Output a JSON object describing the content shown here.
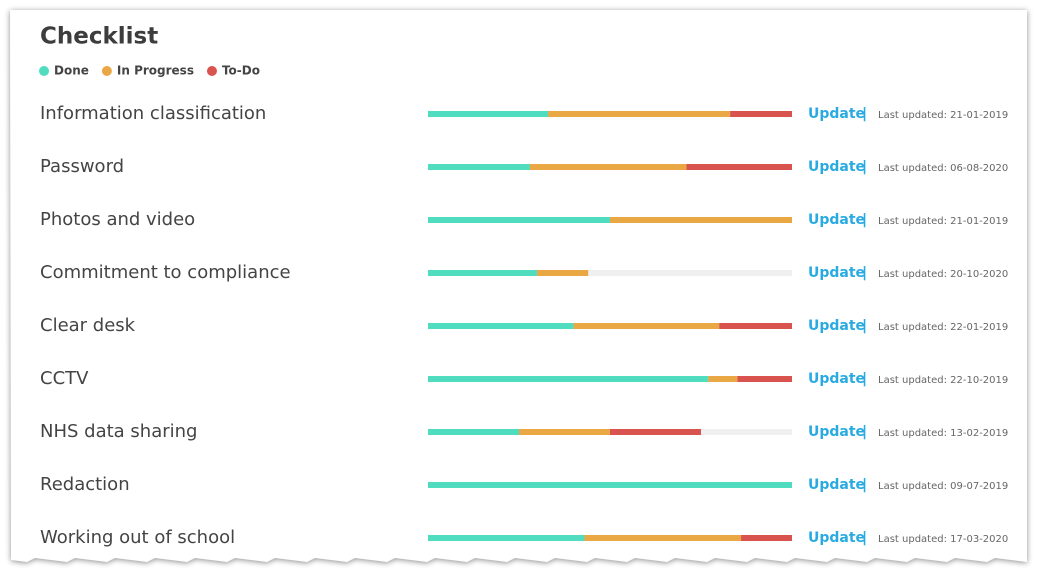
{
  "header": {
    "title": "Checklist"
  },
  "legend": [
    {
      "label": "Done",
      "color": "#4fdcbf"
    },
    {
      "label": "In Progress",
      "color": "#eaa844"
    },
    {
      "label": "To-Do",
      "color": "#d9534f"
    }
  ],
  "action": "Update",
  "separator": "|",
  "rows": [
    {
      "label": "Information classification",
      "done": 33,
      "in_progress": 50,
      "todo": 17,
      "last_updated": "Last updated: 21-01-2019"
    },
    {
      "label": "Password",
      "done": 28,
      "in_progress": 43,
      "todo": 29,
      "last_updated": "Last updated: 06-08-2020"
    },
    {
      "label": "Photos and video",
      "done": 50,
      "in_progress": 50,
      "todo": 0,
      "last_updated": "Last updated: 21-01-2019"
    },
    {
      "label": "Commitment to compliance",
      "done": 30,
      "in_progress": 14,
      "todo": 0,
      "last_updated": "Last updated: 20-10-2020"
    },
    {
      "label": "Clear desk",
      "done": 40,
      "in_progress": 40,
      "todo": 20,
      "last_updated": "Last updated: 22-01-2019"
    },
    {
      "label": "CCTV",
      "done": 77,
      "in_progress": 8,
      "todo": 15,
      "last_updated": "Last updated: 22-10-2019"
    },
    {
      "label": "NHS data sharing",
      "done": 25,
      "in_progress": 25,
      "todo": 25,
      "last_updated": "Last updated: 13-02-2019"
    },
    {
      "label": "Redaction",
      "done": 100,
      "in_progress": 0,
      "todo": 0,
      "last_updated": "Last updated: 09-07-2019"
    },
    {
      "label": "Working out of school",
      "done": 43,
      "in_progress": 43,
      "todo": 14,
      "last_updated": "Last updated: 17-03-2020"
    }
  ]
}
